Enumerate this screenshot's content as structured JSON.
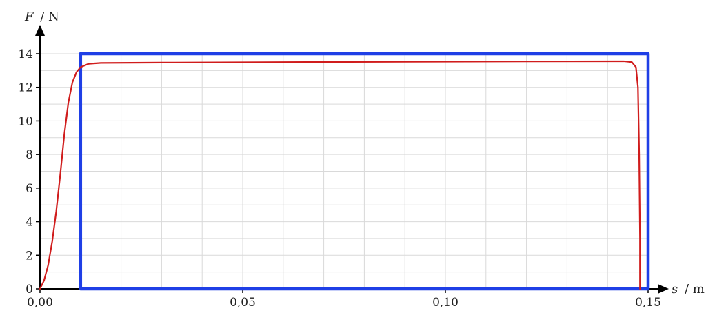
{
  "chart_data": {
    "type": "line",
    "title": "",
    "xlabel": {
      "symbol": "s",
      "unit": "/ m"
    },
    "ylabel": {
      "symbol": "F",
      "unit": "/ N"
    },
    "xlim": [
      0,
      0.15
    ],
    "ylim": [
      0,
      14
    ],
    "grid": true,
    "x_ticks": [
      {
        "value": 0,
        "label": "0,00"
      },
      {
        "value": 0.05,
        "label": "0,05"
      },
      {
        "value": 0.1,
        "label": "0,10"
      },
      {
        "value": 0.15,
        "label": "0,15"
      }
    ],
    "y_ticks": [
      {
        "value": 0,
        "label": "0"
      },
      {
        "value": 2,
        "label": "2"
      },
      {
        "value": 4,
        "label": "4"
      },
      {
        "value": 6,
        "label": "6"
      },
      {
        "value": 8,
        "label": "8"
      },
      {
        "value": 10,
        "label": "10"
      },
      {
        "value": 12,
        "label": "12"
      },
      {
        "value": 14,
        "label": "14"
      }
    ],
    "series": [
      {
        "color": "#1f3fe6",
        "points": [
          [
            0.01,
            0
          ],
          [
            0.01,
            14
          ],
          [
            0.15,
            14
          ],
          [
            0.15,
            0
          ],
          [
            0.01,
            0
          ]
        ]
      },
      {
        "color": "#d01c1c",
        "points": [
          [
            0.0,
            0.0
          ],
          [
            0.001,
            0.5
          ],
          [
            0.002,
            1.4
          ],
          [
            0.003,
            2.8
          ],
          [
            0.004,
            4.6
          ],
          [
            0.005,
            6.8
          ],
          [
            0.006,
            9.2
          ],
          [
            0.007,
            11.1
          ],
          [
            0.008,
            12.3
          ],
          [
            0.009,
            12.9
          ],
          [
            0.01,
            13.2
          ],
          [
            0.012,
            13.4
          ],
          [
            0.015,
            13.45
          ],
          [
            0.03,
            13.47
          ],
          [
            0.06,
            13.5
          ],
          [
            0.09,
            13.52
          ],
          [
            0.12,
            13.54
          ],
          [
            0.144,
            13.55
          ],
          [
            0.146,
            13.5
          ],
          [
            0.147,
            13.2
          ],
          [
            0.1475,
            12.0
          ],
          [
            0.1478,
            8.0
          ],
          [
            0.148,
            3.0
          ],
          [
            0.148,
            0.0
          ]
        ]
      }
    ]
  }
}
